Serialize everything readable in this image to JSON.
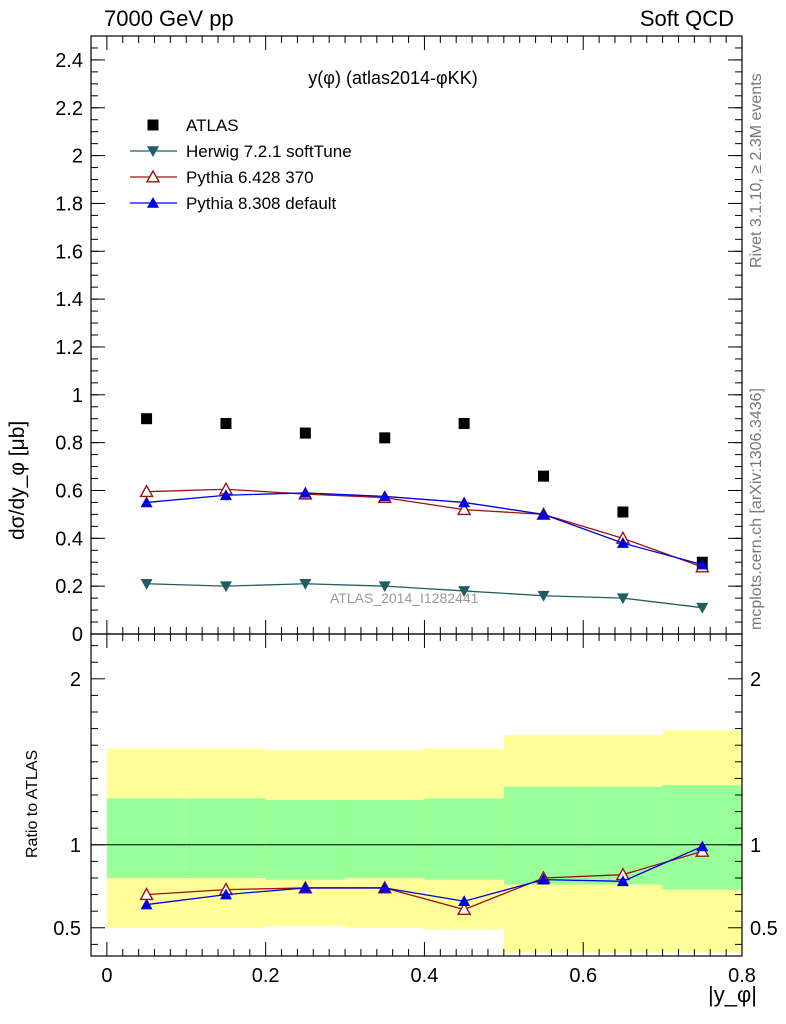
{
  "header": {
    "left": "7000 GeV pp",
    "right": "Soft QCD"
  },
  "side_text": {
    "rivet": "Rivet 3.1.10, ≥ 2.3M events",
    "mcplots": "mcplots.cern.ch [arXiv:1306.3436]"
  },
  "watermark": "ATLAS_2014_I1282441",
  "colors": {
    "atlas": "#000000",
    "herwig": "#1f5f63",
    "pythia6": "#a01010",
    "pythia8": "#0000e0",
    "band_outer": "#ffff99",
    "band_inner": "#99ff99"
  },
  "chart_data": [
    {
      "type": "scatter",
      "title": "y(φ) (atlas2014-φKK)",
      "ylabel": "dσ/dy_φ [μb]",
      "xlim": [
        -0.02,
        0.8
      ],
      "ylim": [
        0,
        2.5
      ],
      "yticks": [
        0,
        0.2,
        0.4,
        0.6,
        0.8,
        1,
        1.2,
        1.4,
        1.6,
        1.8,
        2,
        2.2,
        2.4
      ],
      "legend_position": "top-left",
      "x": [
        0.05,
        0.15,
        0.25,
        0.35,
        0.45,
        0.55,
        0.65,
        0.75
      ],
      "series": [
        {
          "name": "ATLAS",
          "marker": "square",
          "values": [
            0.9,
            0.88,
            0.84,
            0.82,
            0.88,
            0.66,
            0.51,
            0.3
          ]
        },
        {
          "name": "Herwig 7.2.1 softTune",
          "marker": "triangle-down",
          "values": [
            0.21,
            0.2,
            0.21,
            0.2,
            0.18,
            0.16,
            0.15,
            0.11
          ]
        },
        {
          "name": "Pythia 6.428 370",
          "marker": "triangle-up-open",
          "values": [
            0.595,
            0.605,
            0.585,
            0.57,
            0.52,
            0.5,
            0.4,
            0.28
          ]
        },
        {
          "name": "Pythia 8.308 default",
          "marker": "triangle-up",
          "values": [
            0.55,
            0.58,
            0.59,
            0.575,
            0.55,
            0.5,
            0.38,
            0.29
          ]
        }
      ]
    },
    {
      "type": "line",
      "ylabel": "Ratio to ATLAS",
      "xlabel": "|y_φ|",
      "xlim": [
        -0.02,
        0.8
      ],
      "ylim": [
        0.33,
        2.27
      ],
      "yticks": [
        0.5,
        1,
        2
      ],
      "xticks": [
        0,
        0.2,
        0.4,
        0.6,
        0.8
      ],
      "x": [
        0.05,
        0.15,
        0.25,
        0.35,
        0.45,
        0.55,
        0.65,
        0.75
      ],
      "bands": {
        "bin_edges": [
          0,
          0.1,
          0.2,
          0.3,
          0.4,
          0.5,
          0.6,
          0.7,
          0.8
        ],
        "outer_low": [
          0.5,
          0.5,
          0.51,
          0.5,
          0.49,
          0.35,
          0.35,
          0.35
        ],
        "outer_high": [
          1.58,
          1.58,
          1.57,
          1.57,
          1.58,
          1.66,
          1.66,
          1.69
        ],
        "inner_low": [
          0.8,
          0.8,
          0.79,
          0.8,
          0.79,
          0.76,
          0.76,
          0.73
        ],
        "inner_high": [
          1.28,
          1.28,
          1.27,
          1.27,
          1.28,
          1.35,
          1.35,
          1.36
        ]
      },
      "series": [
        {
          "name": "Pythia 6.428 370",
          "values": [
            0.7,
            0.73,
            0.74,
            0.74,
            0.61,
            0.8,
            0.82,
            0.96
          ]
        },
        {
          "name": "Pythia 8.308 default",
          "values": [
            0.64,
            0.7,
            0.74,
            0.74,
            0.66,
            0.79,
            0.78,
            0.99
          ]
        }
      ]
    }
  ]
}
